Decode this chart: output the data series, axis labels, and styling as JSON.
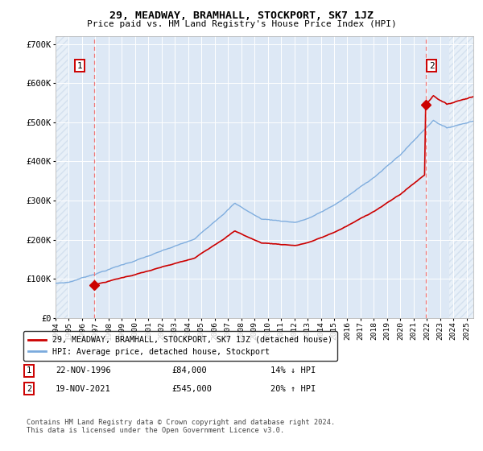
{
  "title": "29, MEADWAY, BRAMHALL, STOCKPORT, SK7 1JZ",
  "subtitle": "Price paid vs. HM Land Registry's House Price Index (HPI)",
  "legend_line1": "29, MEADWAY, BRAMHALL, STOCKPORT, SK7 1JZ (detached house)",
  "legend_line2": "HPI: Average price, detached house, Stockport",
  "table_row1_num": "1",
  "table_row1_date": "22-NOV-1996",
  "table_row1_price": "£84,000",
  "table_row1_hpi": "14% ↓ HPI",
  "table_row2_num": "2",
  "table_row2_date": "19-NOV-2021",
  "table_row2_price": "£545,000",
  "table_row2_hpi": "20% ↑ HPI",
  "footnote": "Contains HM Land Registry data © Crown copyright and database right 2024.\nThis data is licensed under the Open Government Licence v3.0.",
  "sale1_year": 1996.9,
  "sale1_price": 84000,
  "sale2_year": 2021.9,
  "sale2_price": 545000,
  "hpi_color": "#7aaadd",
  "property_color": "#cc0000",
  "bg_color": "#dde8f5",
  "grid_color": "#ffffff",
  "dashed_color": "#ee7777",
  "ylim_max": 720000,
  "ylim_min": 0,
  "xmin": 1994.0,
  "xmax": 2025.5
}
